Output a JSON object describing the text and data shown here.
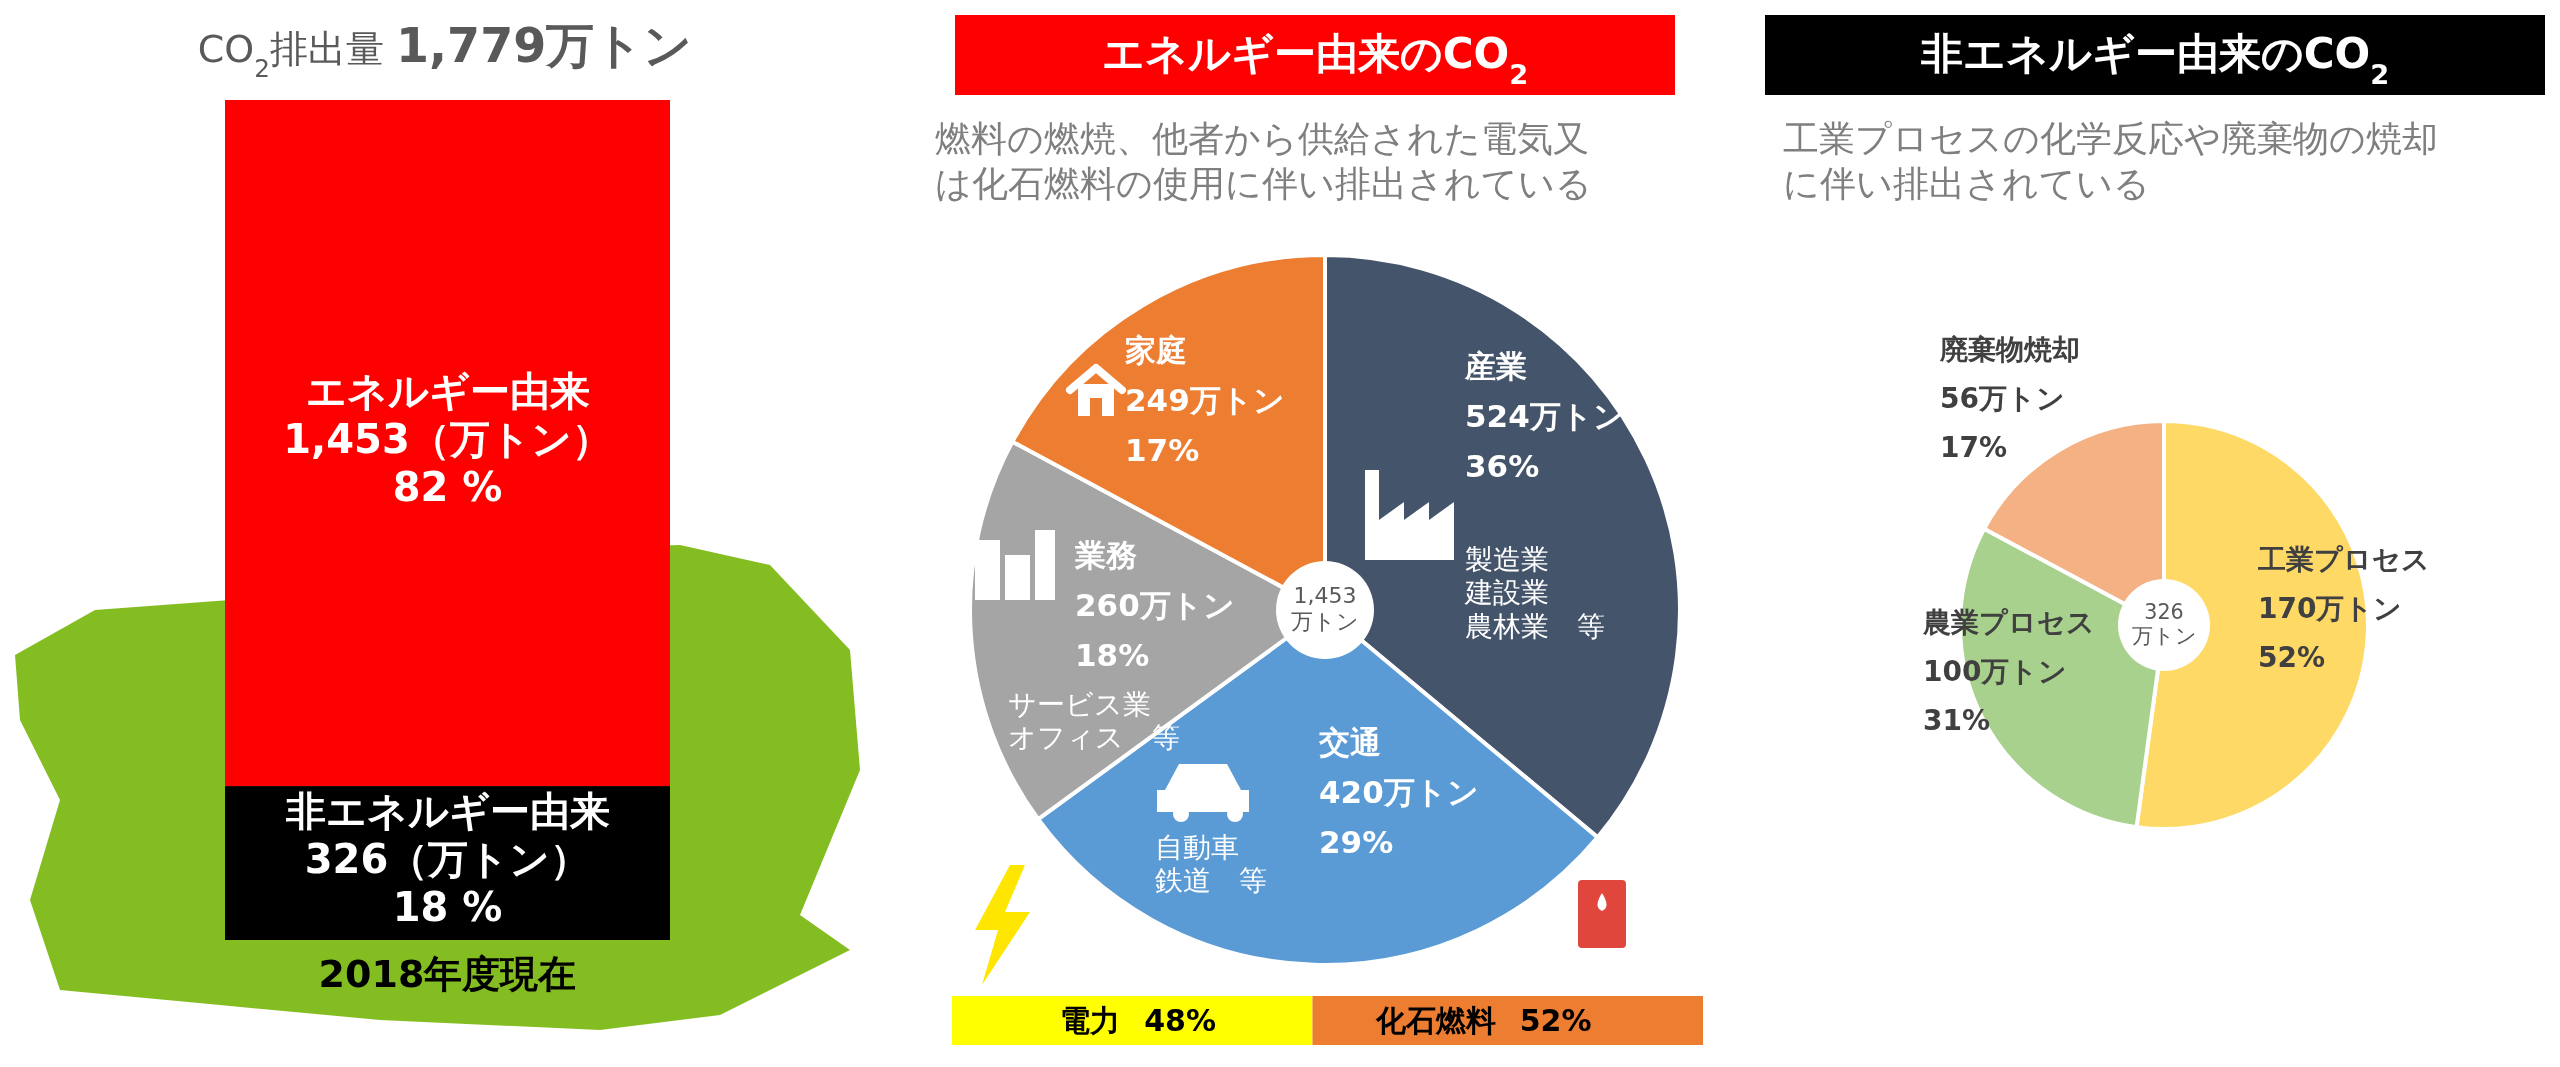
{
  "chart_data": [
    {
      "type": "bar",
      "stacked": true,
      "title": "CO$_{2}$排出量 **1,779万トン**",
      "xlabel": "2018年度現在",
      "categories": [
        null
      ],
      "series": [
        {
          "name": "非エネルギー由来",
          "color": "#000000",
          "values": [
            326
          ],
          "value_labels": [
            "326（万トン）\n18 %"
          ]
        },
        {
          "name": "エネルギー由来",
          "color": "#ff0000",
          "values": [
            1453
          ],
          "value_labels": [
            "1,453（万トン）\n82 %"
          ]
        }
      ]
    },
    {
      "type": "pie",
      "title": "エネルギー由来のCO$_{2}$",
      "subtitle": "燃料の燃焼、他者から供給された電気又は化石燃料の使用に伴い排出されている",
      "categories": [
        "産業",
        "交通",
        "業務",
        "家庭"
      ],
      "values": [
        524,
        420,
        260,
        249
      ],
      "colors": [
        "#44546a",
        "#5b9bd5",
        "#a5a5a5",
        "#ed7d31"
      ],
      "value_labels": [
        "524万トン\n36%",
        "420万トン\n29%",
        "260万トン\n18%",
        "249万トン\n17%"
      ],
      "annotations": [
        "1,453\n万トン",
        {
          "text": "製造業",
          "x": "産業"
        },
        {
          "text": "建設業",
          "x": "産業"
        },
        {
          "text": "農林業　等",
          "x": "産業"
        },
        {
          "text": "自動車",
          "x": "交通"
        },
        {
          "text": "鉄道　等",
          "x": "交通"
        },
        {
          "text": "サービス業",
          "x": "業務"
        },
        {
          "text": "オフィス　等",
          "x": "業務"
        }
      ]
    },
    {
      "type": "bar",
      "stacked": true,
      "orientation": "horizontal",
      "categories": [
        null
      ],
      "series": [
        {
          "name": "電力",
          "color": "#ffff00",
          "values": [
            48
          ],
          "value_labels": [
            "48%"
          ]
        },
        {
          "name": "化石燃料",
          "color": "#ed7d31",
          "values": [
            52
          ],
          "value_labels": [
            "52%"
          ]
        }
      ]
    },
    {
      "type": "donut",
      "title": "非エネルギー由来のCO$_{2}$",
      "subtitle": "工業プロセスの化学反応や廃棄物の焼却に伴い排出されている",
      "categories": [
        "工業プロセス",
        "農業プロセス",
        "廃棄物焼却"
      ],
      "values": [
        170,
        100,
        56
      ],
      "colors": [
        "#ffd966",
        "#a9d18e",
        "#f4b183"
      ],
      "value_labels": [
        "170万トン\n52%",
        "100万トン\n31%",
        "56万トン\n17%"
      ],
      "annotations": [
        "326\n万トン"
      ]
    }
  ]
}
